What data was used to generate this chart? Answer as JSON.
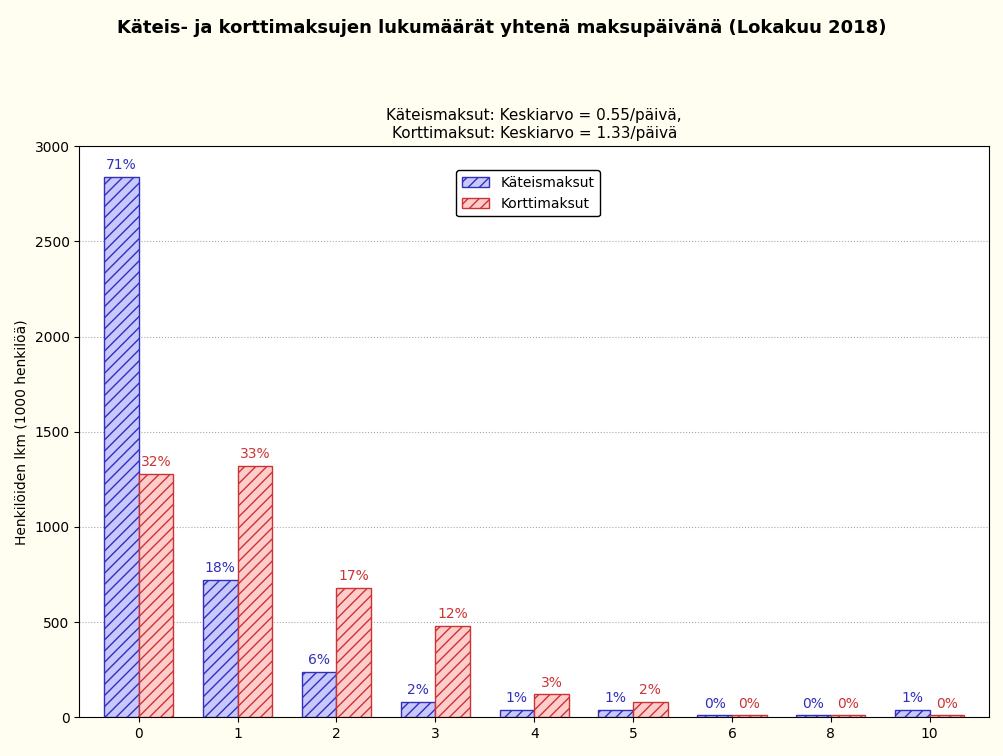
{
  "title": "Käteis- ja korttimaksujen lukumäärät yhtenä maksupäivänä (Lokakuu 2018)",
  "subtitle": "Käteismaksut: Keskiarvo = 0.55/päivä,\nKorttimaksut: Keskiarvo = 1.33/päivä",
  "ylabel": "Henkilöiden lkm (1000 henkilöä)",
  "categories": [
    0,
    1,
    2,
    3,
    4,
    5,
    6,
    8,
    10
  ],
  "cash_values": [
    2840,
    720,
    240,
    80,
    40,
    40,
    10,
    10,
    40
  ],
  "card_values": [
    1280,
    1320,
    680,
    480,
    120,
    80,
    10,
    10,
    10
  ],
  "cash_pct": [
    "71%",
    "18%",
    "6%",
    "2%",
    "1%",
    "1%",
    "0%",
    "0%",
    "1%"
  ],
  "card_pct": [
    "32%",
    "33%",
    "17%",
    "12%",
    "3%",
    "2%",
    "0%",
    "0%",
    "0%"
  ],
  "cash_color": "#3030bb",
  "card_color": "#cc3333",
  "cash_fill": "#c8c8ff",
  "card_fill": "#ffcccc",
  "hatch": "///",
  "ylim": [
    0,
    3000
  ],
  "yticks": [
    0,
    500,
    1000,
    1500,
    2000,
    2500,
    3000
  ],
  "bar_width": 0.35,
  "legend_labels": [
    "Käteismaksut",
    "Korttimaksut"
  ],
  "background_color": "#fffef0",
  "plot_bg_color": "#ffffff",
  "grid_color": "#aaaaaa",
  "title_fontsize": 13,
  "subtitle_fontsize": 11,
  "label_fontsize": 10,
  "tick_fontsize": 10
}
